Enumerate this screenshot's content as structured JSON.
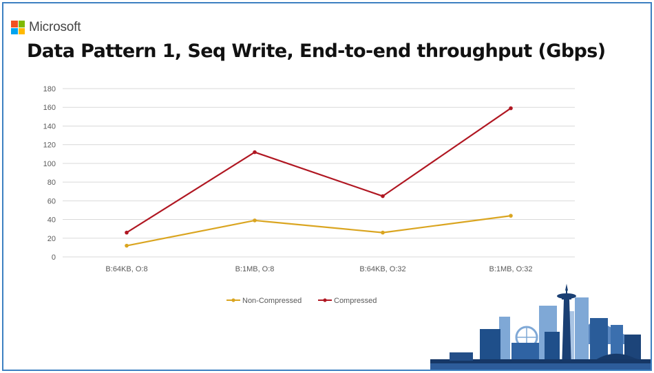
{
  "brand": {
    "name": "Microsoft",
    "colors": [
      "#f25022",
      "#7fba00",
      "#00a4ef",
      "#ffb900"
    ]
  },
  "slide": {
    "title": "Data Pattern 1, Seq Write, End-to-end throughput (Gbps)"
  },
  "chart_data": {
    "type": "line",
    "title": "Data Pattern 1, Seq Write, End-to-end throughput (Gbps)",
    "categories": [
      "B:64KB, O:8",
      "B:1MB, O:8",
      "B:64KB, O:32",
      "B:1MB, O:32"
    ],
    "series": [
      {
        "name": "Non-Compressed",
        "color": "#daa520",
        "values": [
          12,
          39,
          26,
          44
        ]
      },
      {
        "name": "Compressed",
        "color": "#b01722",
        "values": [
          26,
          112,
          65,
          159
        ]
      }
    ],
    "ylim": [
      0,
      180
    ],
    "yticks": [
      0,
      20,
      40,
      60,
      80,
      100,
      120,
      140,
      160,
      180
    ],
    "grid": true,
    "legend": "bottom",
    "xlabel": "",
    "ylabel": ""
  },
  "decoration": {
    "skyline": "seattle-skyline-icon"
  }
}
